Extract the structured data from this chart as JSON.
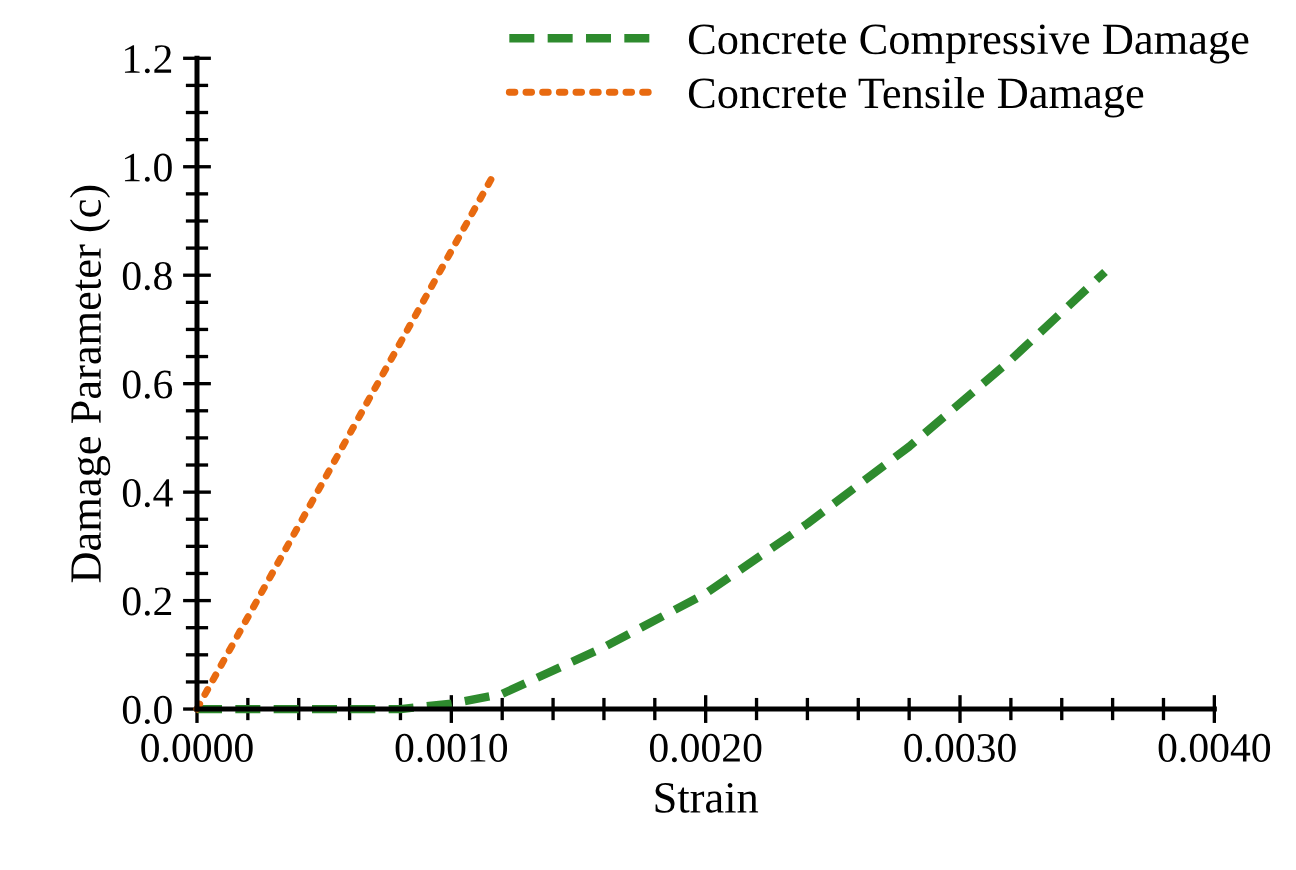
{
  "chart_data": {
    "type": "line",
    "xlabel": "Strain",
    "ylabel": "Damage Parameter (c)",
    "xlim": [
      0,
      0.004
    ],
    "ylim": [
      0,
      1.2
    ],
    "xticks": [
      {
        "value": 0,
        "label": "0.0000"
      },
      {
        "value": 0.001,
        "label": "0.0010"
      },
      {
        "value": 0.002,
        "label": "0.0020"
      },
      {
        "value": 0.003,
        "label": "0.0030"
      },
      {
        "value": 0.004,
        "label": "0.0040"
      }
    ],
    "yticks": [
      {
        "value": 0,
        "label": "0.0"
      },
      {
        "value": 0.2,
        "label": "0.2"
      },
      {
        "value": 0.4,
        "label": "0.4"
      },
      {
        "value": 0.6,
        "label": "0.6"
      },
      {
        "value": 0.8,
        "label": "0.8"
      },
      {
        "value": 1.0,
        "label": "1.0"
      },
      {
        "value": 1.2,
        "label": "1.2"
      }
    ],
    "grid": false,
    "legend": "top right",
    "series": [
      {
        "name": "Concrete Compressive Damage",
        "color": "#2e8b2e",
        "line_style": "dashed",
        "x": [
          0,
          0.0004,
          0.0008,
          0.001,
          0.0012,
          0.0016,
          0.002,
          0.0024,
          0.0028,
          0.0032,
          0.00357
        ],
        "values": [
          0,
          0,
          0,
          0.01,
          0.028,
          0.114,
          0.213,
          0.342,
          0.484,
          0.644,
          0.806
        ]
      },
      {
        "name": "Concrete Tensile Damage",
        "color": "#e86a10",
        "line_style": "dotted",
        "x": [
          0,
          3e-05,
          0.00055,
          0.00116
        ],
        "values": [
          0,
          0.026,
          0.465,
          0.98
        ]
      }
    ]
  }
}
